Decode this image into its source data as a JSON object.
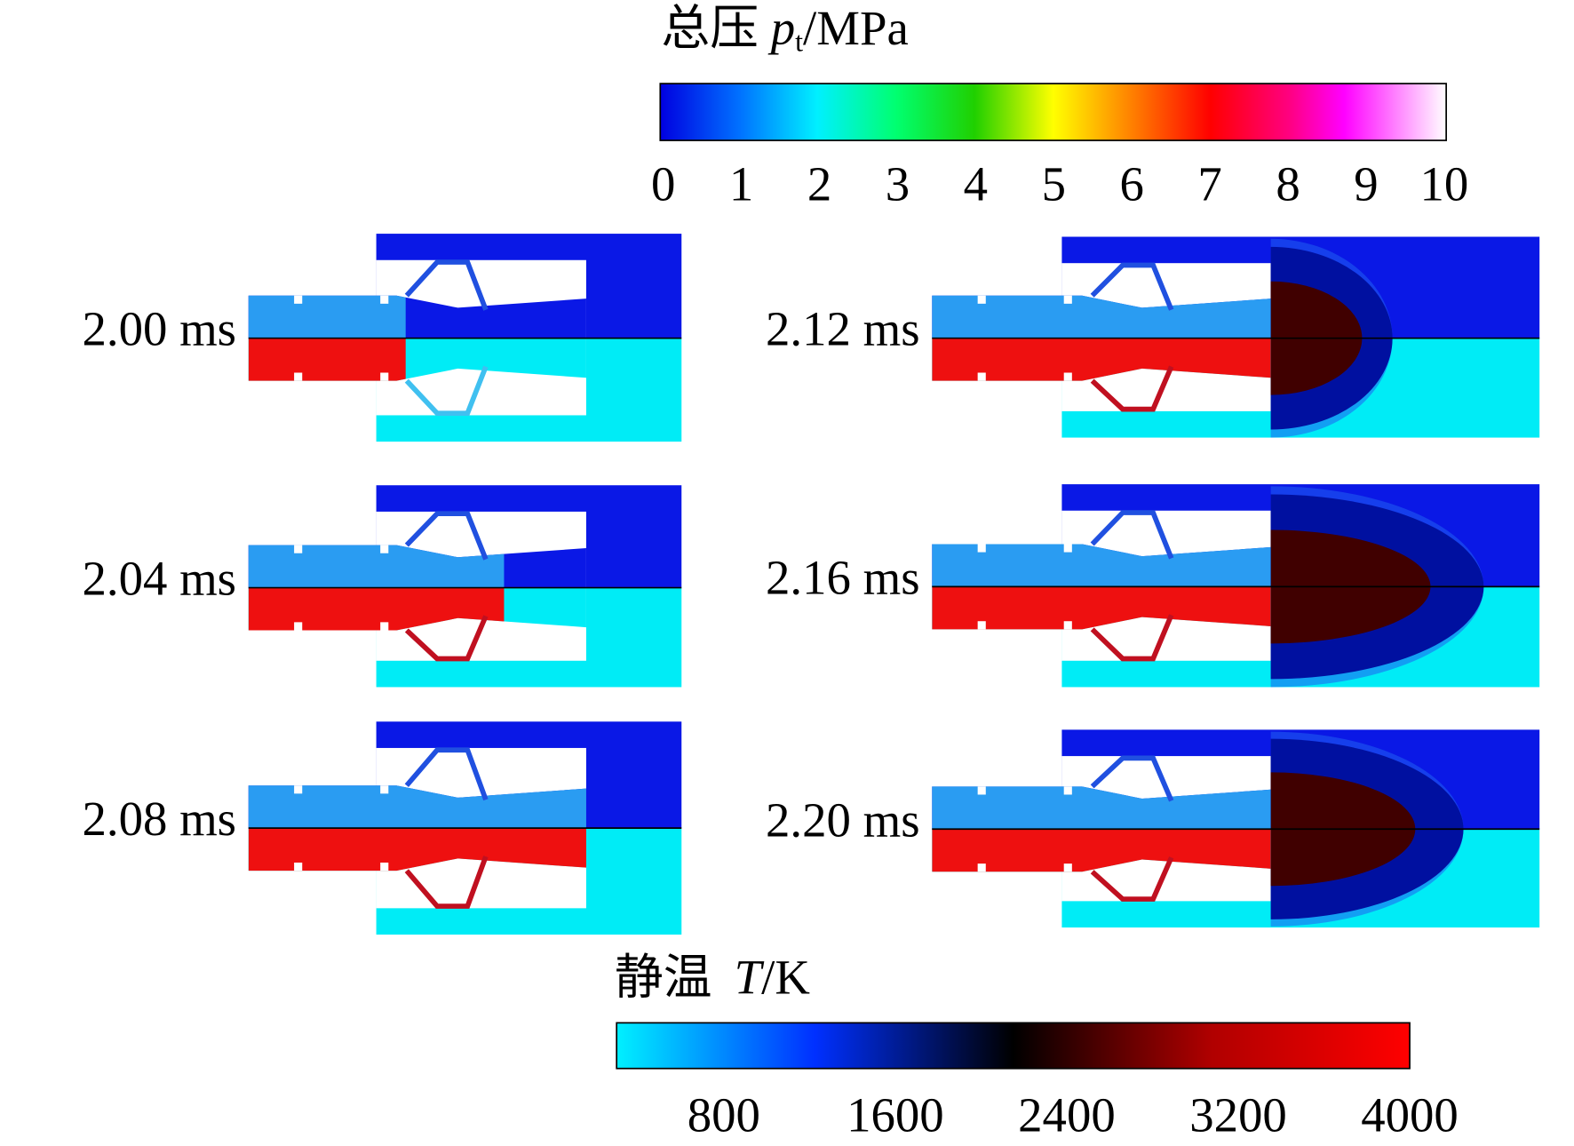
{
  "pressure_colorbar": {
    "title": "总压",
    "symbol": "p",
    "subscript": "t",
    "unit": "/MPa",
    "range": [
      0,
      10
    ],
    "ticks": [
      0,
      1,
      2,
      3,
      4,
      5,
      6,
      7,
      8,
      9,
      10
    ]
  },
  "temperature_colorbar": {
    "title": "静温",
    "symbol": "T",
    "unit": "/K",
    "range": [
      300,
      4000
    ],
    "ticks": [
      800,
      1600,
      2400,
      3200,
      4000
    ]
  },
  "panels": [
    {
      "label": "2.00 ms"
    },
    {
      "label": "2.04 ms"
    },
    {
      "label": "2.08 ms"
    },
    {
      "label": "2.12 ms"
    },
    {
      "label": "2.16 ms"
    },
    {
      "label": "2.20 ms"
    }
  ]
}
